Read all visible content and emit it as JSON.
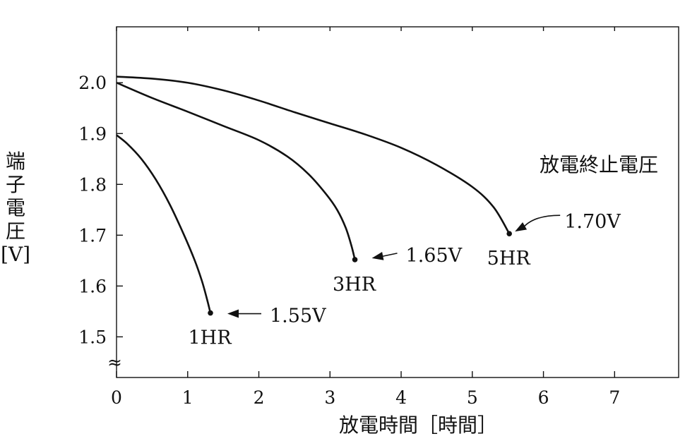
{
  "chart_data": {
    "type": "line",
    "xlabel": "放電時間［時間］",
    "ylabel_chars": [
      "端",
      "子",
      "電",
      "圧",
      "[V]"
    ],
    "xlim": [
      0,
      7.9
    ],
    "ylim": [
      1.42,
      2.11
    ],
    "x_ticks": [
      0,
      1,
      2,
      3,
      4,
      5,
      6,
      7
    ],
    "y_ticks": [
      1.5,
      1.6,
      1.7,
      1.8,
      1.9,
      2.0
    ],
    "y_tick_labels": [
      "1.5",
      "1.6",
      "1.7",
      "1.8",
      "1.9",
      "2.0"
    ],
    "x_tick_labels": [
      "0",
      "1",
      "2",
      "3",
      "4",
      "5",
      "6",
      "7"
    ],
    "axis_break_symbol": "≈",
    "grid": false,
    "series": [
      {
        "name": "1HR",
        "x": [
          0,
          0.15,
          0.35,
          0.55,
          0.75,
          0.95,
          1.1,
          1.2,
          1.27,
          1.32
        ],
        "y": [
          1.897,
          1.88,
          1.85,
          1.81,
          1.76,
          1.7,
          1.65,
          1.61,
          1.575,
          1.547
        ]
      },
      {
        "name": "3HR",
        "x": [
          0,
          0.5,
          1.0,
          1.5,
          2.0,
          2.4,
          2.7,
          2.95,
          3.1,
          3.22,
          3.3,
          3.35
        ],
        "y": [
          2.0,
          1.97,
          1.943,
          1.915,
          1.887,
          1.855,
          1.82,
          1.78,
          1.75,
          1.715,
          1.68,
          1.652
        ]
      },
      {
        "name": "5HR",
        "x": [
          0,
          0.5,
          1.0,
          1.5,
          2.0,
          2.5,
          3.0,
          3.5,
          4.0,
          4.5,
          5.0,
          5.3,
          5.52
        ],
        "y": [
          2.012,
          2.008,
          2.0,
          1.985,
          1.965,
          1.942,
          1.92,
          1.898,
          1.872,
          1.838,
          1.795,
          1.755,
          1.703
        ]
      }
    ],
    "annotations": {
      "title": "放電終止電圧",
      "endpoints": [
        {
          "series": "1HR",
          "x": 1.32,
          "y": 1.547,
          "voltage_label": "1.55V",
          "rate_label": "1HR"
        },
        {
          "series": "3HR",
          "x": 3.35,
          "y": 1.652,
          "voltage_label": "1.65V",
          "rate_label": "3HR"
        },
        {
          "series": "5HR",
          "x": 5.52,
          "y": 1.703,
          "voltage_label": "1.70V",
          "rate_label": "5HR"
        }
      ]
    }
  }
}
